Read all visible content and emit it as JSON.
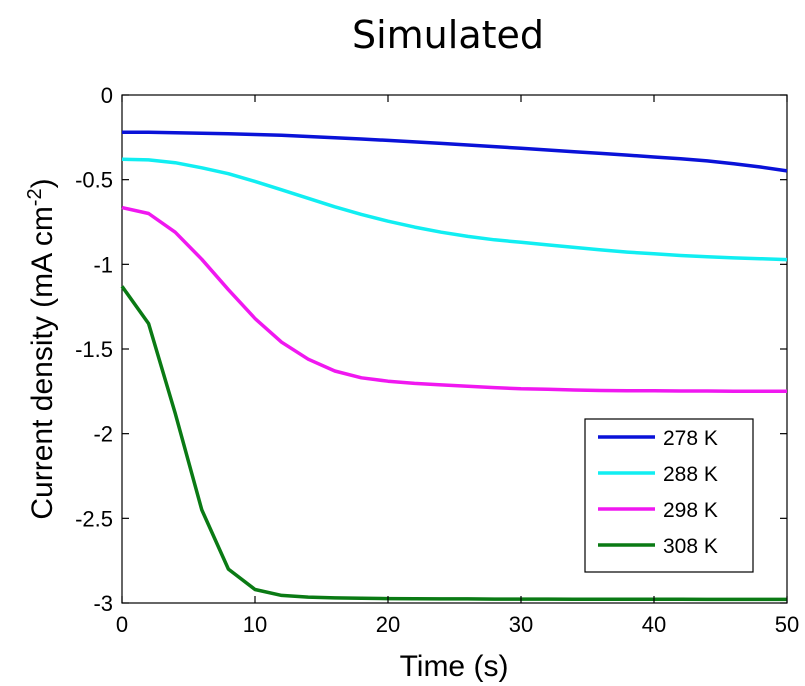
{
  "chart_data": {
    "type": "line",
    "title": "Simulated",
    "xlabel": "Time (s)",
    "ylabel_main": "Current density (mA cm",
    "ylabel_sup": "-2",
    "ylabel_close": ")",
    "xlim": [
      0,
      50
    ],
    "ylim": [
      -3,
      0
    ],
    "xticks": [
      0,
      10,
      20,
      30,
      40,
      50
    ],
    "xtick_labels": [
      "0",
      "10",
      "20",
      "30",
      "40",
      "50"
    ],
    "yticks": [
      0,
      -0.5,
      -1,
      -1.5,
      -2,
      -2.5,
      -3
    ],
    "ytick_labels": [
      "0",
      "-0.5",
      "-1",
      "-1.5",
      "-2",
      "-2.5",
      "-3"
    ],
    "grid": false,
    "legend_position": "lower-right",
    "x": [
      0,
      2,
      4,
      6,
      8,
      10,
      12,
      14,
      16,
      18,
      20,
      22,
      24,
      26,
      28,
      30,
      32,
      34,
      36,
      38,
      40,
      42,
      44,
      46,
      48,
      50
    ],
    "series": [
      {
        "name": "278 K",
        "color": "#0a12d8",
        "values": [
          -0.22,
          -0.22,
          -0.223,
          -0.226,
          -0.229,
          -0.233,
          -0.238,
          -0.245,
          -0.252,
          -0.26,
          -0.268,
          -0.277,
          -0.286,
          -0.295,
          -0.305,
          -0.315,
          -0.325,
          -0.335,
          -0.345,
          -0.355,
          -0.366,
          -0.376,
          -0.389,
          -0.406,
          -0.425,
          -0.448
        ]
      },
      {
        "name": "288 K",
        "color": "#11eef2",
        "values": [
          -0.38,
          -0.383,
          -0.4,
          -0.43,
          -0.465,
          -0.51,
          -0.56,
          -0.61,
          -0.66,
          -0.705,
          -0.745,
          -0.78,
          -0.81,
          -0.835,
          -0.855,
          -0.87,
          -0.885,
          -0.9,
          -0.915,
          -0.928,
          -0.938,
          -0.948,
          -0.955,
          -0.962,
          -0.967,
          -0.972
        ]
      },
      {
        "name": "298 K",
        "color": "#f018f0",
        "values": [
          -0.665,
          -0.7,
          -0.81,
          -0.97,
          -1.15,
          -1.32,
          -1.46,
          -1.56,
          -1.63,
          -1.67,
          -1.69,
          -1.703,
          -1.712,
          -1.72,
          -1.728,
          -1.735,
          -1.738,
          -1.742,
          -1.745,
          -1.746,
          -1.747,
          -1.748,
          -1.748,
          -1.749,
          -1.749,
          -1.75
        ]
      },
      {
        "name": "308 K",
        "color": "#0a7a14",
        "values": [
          -1.13,
          -1.35,
          -1.88,
          -2.45,
          -2.8,
          -2.92,
          -2.955,
          -2.965,
          -2.97,
          -2.972,
          -2.974,
          -2.975,
          -2.976,
          -2.976,
          -2.977,
          -2.977,
          -2.977,
          -2.978,
          -2.978,
          -2.978,
          -2.978,
          -2.978,
          -2.979,
          -2.979,
          -2.979,
          -2.979
        ]
      }
    ]
  }
}
